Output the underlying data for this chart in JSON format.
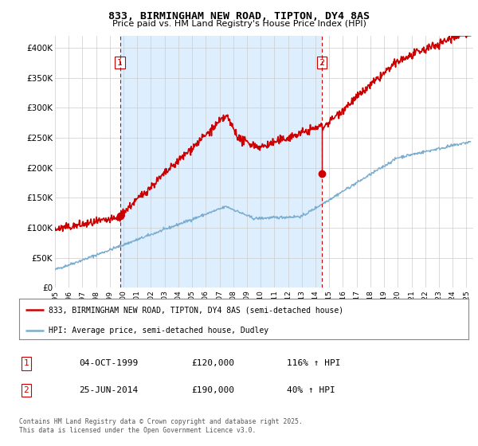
{
  "title": "833, BIRMINGHAM NEW ROAD, TIPTON, DY4 8AS",
  "subtitle": "Price paid vs. HM Land Registry's House Price Index (HPI)",
  "ylabel_ticks": [
    "£0",
    "£50K",
    "£100K",
    "£150K",
    "£200K",
    "£250K",
    "£300K",
    "£350K",
    "£400K"
  ],
  "ytick_values": [
    0,
    50000,
    100000,
    150000,
    200000,
    250000,
    300000,
    350000,
    400000
  ],
  "ylim": [
    0,
    420000
  ],
  "xlim_start": 1995.0,
  "xlim_end": 2025.5,
  "sale1_year": 1999.75,
  "sale1_price": 120000,
  "sale2_year": 2014.47,
  "sale2_price": 190000,
  "red_line_color": "#cc0000",
  "blue_line_color": "#7aadcf",
  "shade_color": "#ddeeff",
  "vline_color": "#cc0000",
  "legend_label_red": "833, BIRMINGHAM NEW ROAD, TIPTON, DY4 8AS (semi-detached house)",
  "legend_label_blue": "HPI: Average price, semi-detached house, Dudley",
  "table_row1": [
    "1",
    "04-OCT-1999",
    "£120,000",
    "116% ↑ HPI"
  ],
  "table_row2": [
    "2",
    "25-JUN-2014",
    "£190,000",
    "40% ↑ HPI"
  ],
  "footer": "Contains HM Land Registry data © Crown copyright and database right 2025.\nThis data is licensed under the Open Government Licence v3.0.",
  "background_color": "#ffffff",
  "grid_color": "#cccccc"
}
